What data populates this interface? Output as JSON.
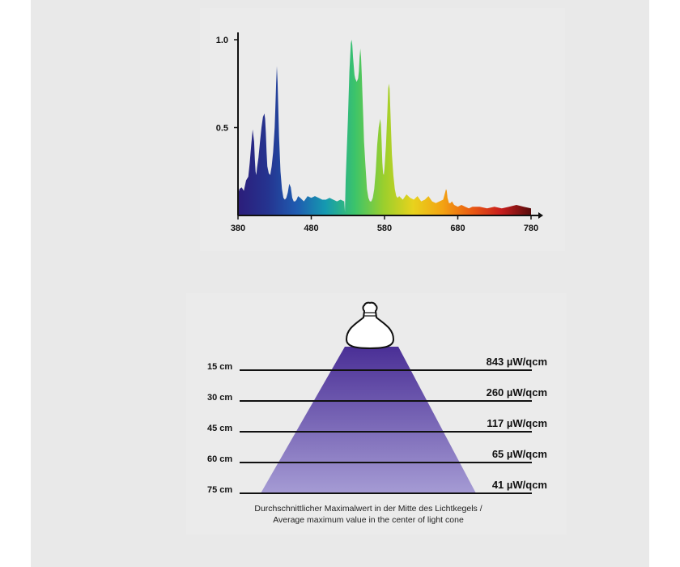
{
  "chart_data": [
    {
      "type": "area",
      "title": "",
      "xlabel": "",
      "ylabel": "",
      "x_ticks": [
        "380",
        "480",
        "580",
        "680",
        "780"
      ],
      "y_ticks": [
        "0.5",
        "1.0"
      ],
      "xlim": [
        380,
        780
      ],
      "ylim": [
        0,
        1.0
      ],
      "grid": false,
      "gradient_colors": [
        "#2c1d7a",
        "#25338f",
        "#1f5bb0",
        "#159ab0",
        "#3cc46a",
        "#9ccf2c",
        "#e8d21d",
        "#f3a312",
        "#ea5a12",
        "#c81e1e",
        "#5a0c0c"
      ],
      "series": [
        {
          "x": [
            380,
            382,
            385,
            388,
            391,
            394,
            396,
            398,
            400,
            402,
            403,
            404,
            405,
            406,
            408,
            410,
            412,
            414,
            416,
            417,
            418,
            419,
            420,
            422,
            424,
            426,
            428,
            430,
            431,
            432,
            433,
            434,
            436,
            438,
            440,
            442,
            444,
            446,
            448,
            450,
            452,
            454,
            456,
            458,
            460,
            462,
            465,
            470,
            475,
            480,
            485,
            490,
            495,
            500,
            505,
            510,
            515,
            520,
            525,
            526,
            527,
            530,
            532,
            534,
            535,
            536,
            537,
            538,
            539,
            540,
            542,
            544,
            545,
            546,
            547,
            548,
            549,
            550,
            551,
            552,
            554,
            556,
            558,
            560,
            562,
            564,
            566,
            568,
            570,
            572,
            574,
            575,
            576,
            577,
            578,
            579,
            580,
            582,
            584,
            585,
            586,
            587,
            588,
            589,
            590,
            592,
            594,
            596,
            598,
            600,
            605,
            610,
            615,
            620,
            625,
            630,
            635,
            640,
            645,
            650,
            655,
            660,
            662,
            664,
            665,
            666,
            668,
            670,
            672,
            675,
            680,
            685,
            690,
            695,
            700,
            710,
            720,
            730,
            740,
            750,
            760,
            770,
            780
          ],
          "values": [
            0.12,
            0.15,
            0.16,
            0.14,
            0.2,
            0.22,
            0.3,
            0.4,
            0.49,
            0.42,
            0.32,
            0.25,
            0.23,
            0.27,
            0.33,
            0.42,
            0.5,
            0.56,
            0.58,
            0.55,
            0.47,
            0.36,
            0.28,
            0.24,
            0.23,
            0.28,
            0.36,
            0.5,
            0.62,
            0.75,
            0.85,
            0.76,
            0.45,
            0.25,
            0.15,
            0.1,
            0.09,
            0.1,
            0.13,
            0.18,
            0.16,
            0.1,
            0.08,
            0.08,
            0.09,
            0.11,
            0.1,
            0.08,
            0.11,
            0.1,
            0.11,
            0.1,
            0.09,
            0.09,
            0.1,
            0.09,
            0.08,
            0.09,
            0.08,
            0.02,
            0.2,
            0.55,
            0.82,
            0.98,
            1.0,
            0.97,
            0.9,
            0.85,
            0.8,
            0.78,
            0.76,
            0.78,
            0.82,
            0.9,
            0.95,
            0.9,
            0.8,
            0.68,
            0.55,
            0.42,
            0.28,
            0.15,
            0.1,
            0.08,
            0.08,
            0.1,
            0.15,
            0.25,
            0.4,
            0.5,
            0.55,
            0.52,
            0.42,
            0.3,
            0.24,
            0.23,
            0.27,
            0.4,
            0.6,
            0.72,
            0.75,
            0.72,
            0.6,
            0.48,
            0.35,
            0.23,
            0.15,
            0.11,
            0.1,
            0.11,
            0.09,
            0.12,
            0.1,
            0.09,
            0.11,
            0.08,
            0.09,
            0.11,
            0.08,
            0.07,
            0.08,
            0.09,
            0.12,
            0.15,
            0.14,
            0.1,
            0.07,
            0.07,
            0.08,
            0.06,
            0.05,
            0.06,
            0.05,
            0.04,
            0.05,
            0.05,
            0.04,
            0.05,
            0.04,
            0.05,
            0.06,
            0.05,
            0.04
          ]
        }
      ]
    },
    {
      "type": "table",
      "title": "",
      "rows": [
        {
          "distance": "15 cm",
          "value": "843 µW/qcm"
        },
        {
          "distance": "30 cm",
          "value": "260 µW/qcm"
        },
        {
          "distance": "45 cm",
          "value": "117 µW/qcm"
        },
        {
          "distance": "60 cm",
          "value": "65 µW/qcm"
        },
        {
          "distance": "75 cm",
          "value": "41 µW/qcm"
        }
      ],
      "cone_colors": {
        "top": "#4a2f96",
        "bottom": "#a59bd4"
      },
      "caption_line1": "Durchschnittlicher Maximalwert in der Mitte des Lichtkegels /",
      "caption_line2": "Average maximum value in the center of light cone"
    }
  ],
  "icons": {
    "lamp": "uv-spot-lamp-icon"
  }
}
